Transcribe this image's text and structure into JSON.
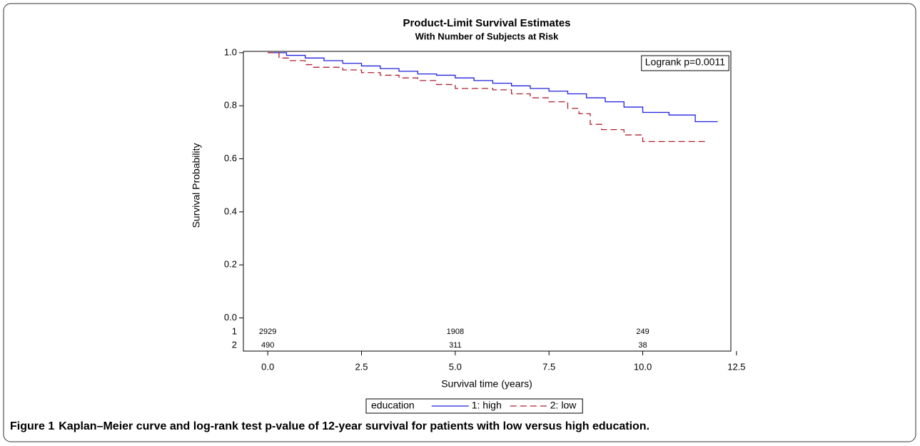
{
  "chart_data": {
    "type": "step",
    "title": "Product-Limit Survival Estimates",
    "subtitle": "With Number of Subjects at Risk",
    "x_label": "Survival time (years)",
    "y_label": "Survival Probability",
    "annotation": "Logrank p=0.0011",
    "legend_title": "education",
    "xlim": [
      -0.65,
      12.35
    ],
    "ylim": [
      -0.125,
      1.005
    ],
    "xticks": [
      {
        "value": 0,
        "label": "0.0"
      },
      2.5,
      {
        "value": 5,
        "label": "5.0"
      },
      7.5,
      {
        "value": 10,
        "label": "10.0"
      },
      12.5
    ],
    "yticks": [
      {
        "value": 0,
        "label": "0.0"
      },
      0.2,
      0.4,
      0.6,
      0.8,
      {
        "value": 1,
        "label": "1.0"
      }
    ],
    "series": [
      {
        "name": "1: high",
        "color": "#2020e0",
        "dashed": false,
        "x": [
          0,
          0.5,
          1,
          1.5,
          2,
          2.5,
          3,
          3.5,
          4,
          4.5,
          5,
          5.5,
          6,
          6.5,
          7,
          7.5,
          8,
          8.5,
          9,
          9.5,
          10,
          10.7,
          11.4,
          12
        ],
        "values": [
          1.0,
          0.99,
          0.98,
          0.97,
          0.96,
          0.95,
          0.94,
          0.93,
          0.92,
          0.915,
          0.905,
          0.895,
          0.885,
          0.875,
          0.865,
          0.855,
          0.845,
          0.83,
          0.815,
          0.795,
          0.775,
          0.765,
          0.74,
          0.74
        ]
      },
      {
        "name": "2: low",
        "color": "#b02030",
        "dashed": true,
        "x": [
          0,
          0.3,
          0.6,
          1,
          1.2,
          2,
          2.5,
          3,
          3.5,
          4,
          4.5,
          5,
          6,
          6.5,
          7,
          7.5,
          8,
          8.3,
          8.6,
          8.9,
          9.5,
          10,
          11.7
        ],
        "values": [
          1.0,
          0.98,
          0.97,
          0.955,
          0.945,
          0.935,
          0.925,
          0.915,
          0.905,
          0.895,
          0.88,
          0.865,
          0.86,
          0.845,
          0.83,
          0.815,
          0.79,
          0.77,
          0.73,
          0.71,
          0.69,
          0.665,
          0.665
        ]
      }
    ],
    "at_risk": {
      "times": [
        0,
        5,
        10
      ],
      "rows": [
        {
          "label": "1",
          "values": [
            2929,
            1908,
            249
          ]
        },
        {
          "label": "2",
          "values": [
            490,
            311,
            38
          ]
        }
      ]
    }
  },
  "caption": {
    "label": "Figure 1",
    "text": "Kaplan–Meier curve and log-rank test p-value of 12-year survival for patients with low versus high education."
  }
}
